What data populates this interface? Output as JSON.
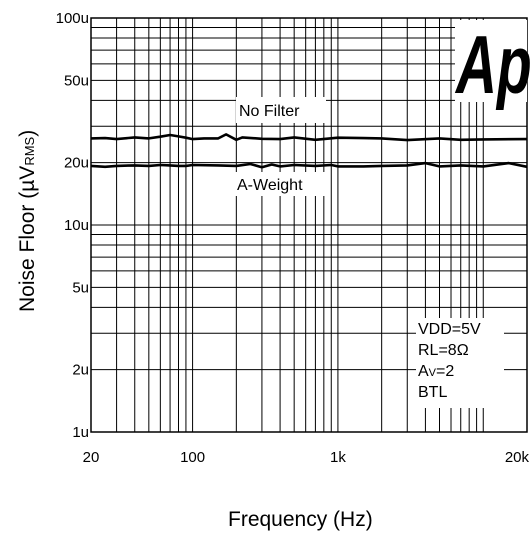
{
  "chart_data": {
    "type": "line",
    "title": "",
    "xlabel": "Frequency (Hz)",
    "ylabel_main": "Noise Floor (",
    "ylabel_mu": "µ",
    "ylabel_v": "V",
    "ylabel_sub": "RMS",
    "ylabel_close": ")",
    "xscale": "log",
    "yscale": "log",
    "xlim": [
      20,
      20000
    ],
    "ylim": [
      1e-06,
      0.0001
    ],
    "grid": true,
    "x_tick_labels": [
      {
        "value": 20,
        "label": "20"
      },
      {
        "value": 100,
        "label": "100"
      },
      {
        "value": 1000,
        "label": "1k"
      },
      {
        "value": 20000,
        "label": "20k"
      }
    ],
    "y_tick_labels": [
      {
        "value": 0.0001,
        "label": "100u"
      },
      {
        "value": 5e-05,
        "label": "50u"
      },
      {
        "value": 2e-05,
        "label": "20u"
      },
      {
        "value": 1e-05,
        "label": "10u"
      },
      {
        "value": 5e-06,
        "label": "5u"
      },
      {
        "value": 2e-06,
        "label": "2u"
      },
      {
        "value": 1e-06,
        "label": "1u"
      }
    ],
    "series": [
      {
        "name": "No Filter",
        "x": [
          20,
          25,
          30,
          40,
          50,
          60,
          70,
          80,
          90,
          100,
          120,
          150,
          170,
          200,
          220,
          300,
          400,
          500,
          700,
          1000,
          1500,
          2000,
          3000,
          5000,
          7000,
          10000,
          20000
        ],
        "y": [
          2.62e-05,
          2.63e-05,
          2.6e-05,
          2.65e-05,
          2.62e-05,
          2.67e-05,
          2.72e-05,
          2.68e-05,
          2.64e-05,
          2.6e-05,
          2.62e-05,
          2.62e-05,
          2.74e-05,
          2.58e-05,
          2.65e-05,
          2.61e-05,
          2.6e-05,
          2.65e-05,
          2.58e-05,
          2.64e-05,
          2.63e-05,
          2.62e-05,
          2.57e-05,
          2.62e-05,
          2.58e-05,
          2.59e-05,
          2.6e-05
        ]
      },
      {
        "name": "A-Weight",
        "x": [
          20,
          25,
          30,
          40,
          50,
          60,
          70,
          80,
          90,
          100,
          150,
          200,
          250,
          300,
          350,
          400,
          500,
          700,
          900,
          1000,
          1500,
          2000,
          3000,
          4000,
          5000,
          7000,
          10000,
          15000,
          20000
        ],
        "y": [
          1.93e-05,
          1.91e-05,
          1.93e-05,
          1.94e-05,
          1.93e-05,
          1.95e-05,
          1.94e-05,
          1.93e-05,
          1.93e-05,
          1.95e-05,
          1.94e-05,
          1.93e-05,
          1.97e-05,
          1.9e-05,
          1.96e-05,
          1.92e-05,
          1.95e-05,
          1.93e-05,
          1.95e-05,
          1.92e-05,
          1.92e-05,
          1.93e-05,
          1.94e-05,
          1.99e-05,
          1.92e-05,
          1.94e-05,
          1.92e-05,
          1.99e-05,
          1.91e-05
        ]
      }
    ],
    "annotations": {
      "no_filter": "No Filter",
      "a_weight": "A-Weight",
      "conditions": [
        "VDD=5V",
        "RL=8Ω",
        "AV=2",
        "BTL"
      ]
    },
    "logo_text": "Ap"
  }
}
